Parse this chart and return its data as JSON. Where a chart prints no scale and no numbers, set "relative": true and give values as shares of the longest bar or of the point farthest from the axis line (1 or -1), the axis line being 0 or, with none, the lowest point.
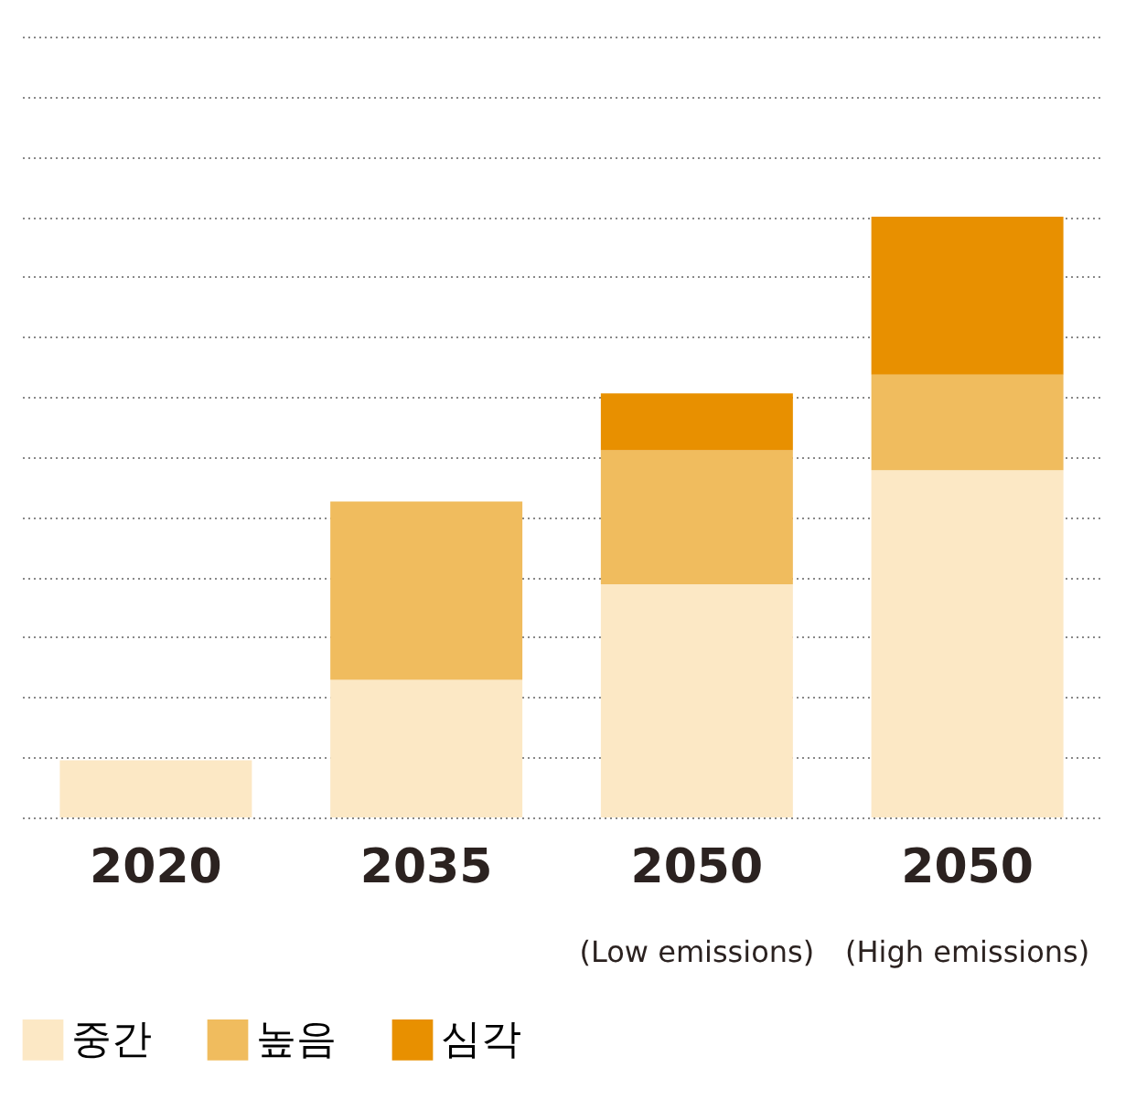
{
  "chart_data": {
    "type": "bar",
    "stacked": true,
    "relative": true,
    "grid": "y",
    "legend": "bottom left",
    "categories": [
      "2020",
      "2035",
      "2050\n(Low emissions)",
      "2050\n(High emissions)"
    ],
    "series": [
      {
        "name": "중간",
        "color": "#fce8c5",
        "values": [
          0.095,
          0.229,
          0.388,
          0.578
        ]
      },
      {
        "name": "높음",
        "color": "#f0bc5e",
        "values": [
          null,
          0.297,
          0.223,
          0.159
        ]
      },
      {
        "name": "심각",
        "color": "#e89000",
        "values": [
          null,
          null,
          0.095,
          0.263
        ]
      }
    ]
  }
}
